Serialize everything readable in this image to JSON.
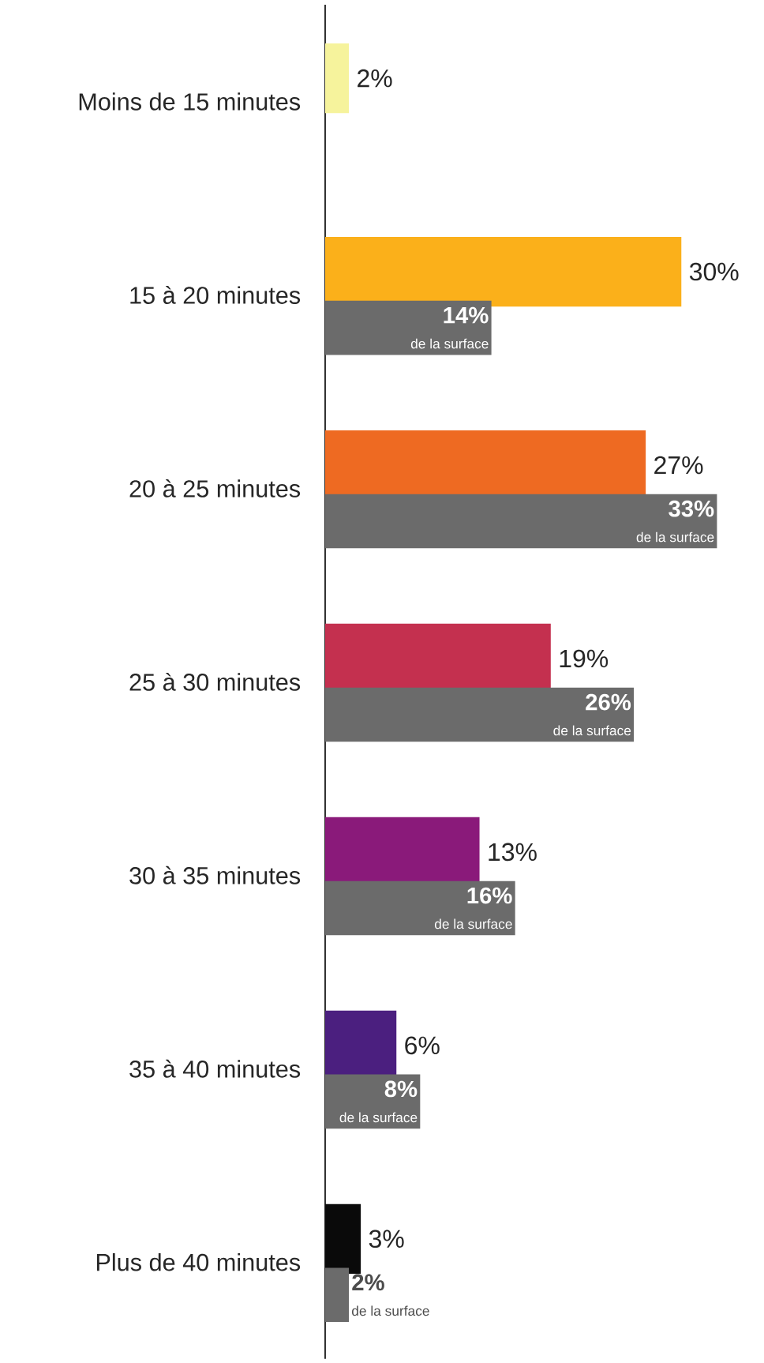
{
  "chart_data": {
    "type": "bar",
    "orientation": "horizontal",
    "categories": [
      "Moins de 15 minutes",
      "15 à 20 minutes",
      "20 à 25 minutes",
      "25 à 30 minutes",
      "30 à 35 minutes",
      "35 à 40 minutes",
      "Plus de 40 minutes"
    ],
    "series": [
      {
        "colors": [
          "#f6f39c",
          "#fbb01a",
          "#ee6a22",
          "#c4304f",
          "#8a1a7a",
          "#4b1f7f",
          "#0a0a0a"
        ],
        "values": [
          2,
          30,
          27,
          19,
          13,
          6,
          3
        ],
        "value_labels": [
          "2%",
          "30%",
          "27%",
          "19%",
          "13%",
          "6%",
          "3%"
        ]
      },
      {
        "name": "de la surface",
        "color": "#6b6b6b",
        "values": [
          null,
          14,
          33,
          26,
          16,
          8,
          2
        ],
        "value_labels": [
          null,
          "14%",
          "33%",
          "26%",
          "16%",
          "8%",
          "2%"
        ]
      }
    ]
  }
}
